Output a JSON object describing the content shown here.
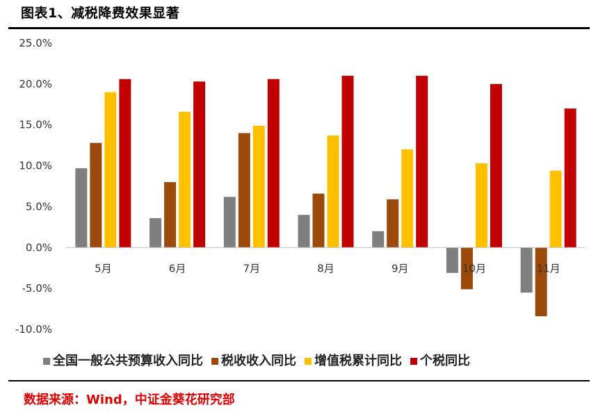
{
  "title": "图表1、减税降费效果显著",
  "source": "数据来源：Wind，中证金葵花研究部",
  "chart_data": {
    "type": "bar",
    "categories": [
      "5月",
      "6月",
      "7月",
      "8月",
      "9月",
      "10月",
      "11月"
    ],
    "series": [
      {
        "name": "全国一般公共预算收入同比",
        "color": "#7f7f7f",
        "values": [
          9.7,
          3.6,
          6.2,
          4.0,
          2.0,
          -3.1,
          -5.5
        ]
      },
      {
        "name": "税收收入同比",
        "color": "#9c4a0c",
        "values": [
          12.8,
          8.0,
          14.0,
          6.6,
          5.9,
          -5.1,
          -8.4
        ]
      },
      {
        "name": "增值税累计同比",
        "color": "#ffc000",
        "values": [
          19.0,
          16.6,
          14.9,
          13.7,
          12.0,
          10.3,
          9.4
        ]
      },
      {
        "name": "个税同比",
        "color": "#c00000",
        "values": [
          20.6,
          20.3,
          20.6,
          21.0,
          21.0,
          20.0,
          17.0
        ]
      }
    ],
    "ylim": [
      -10,
      25
    ],
    "yticks": [
      "25.0%",
      "20.0%",
      "15.0%",
      "10.0%",
      "5.0%",
      "0.0%",
      "-5.0%",
      "-10.0%"
    ],
    "grid": false,
    "legend": "bottom"
  }
}
